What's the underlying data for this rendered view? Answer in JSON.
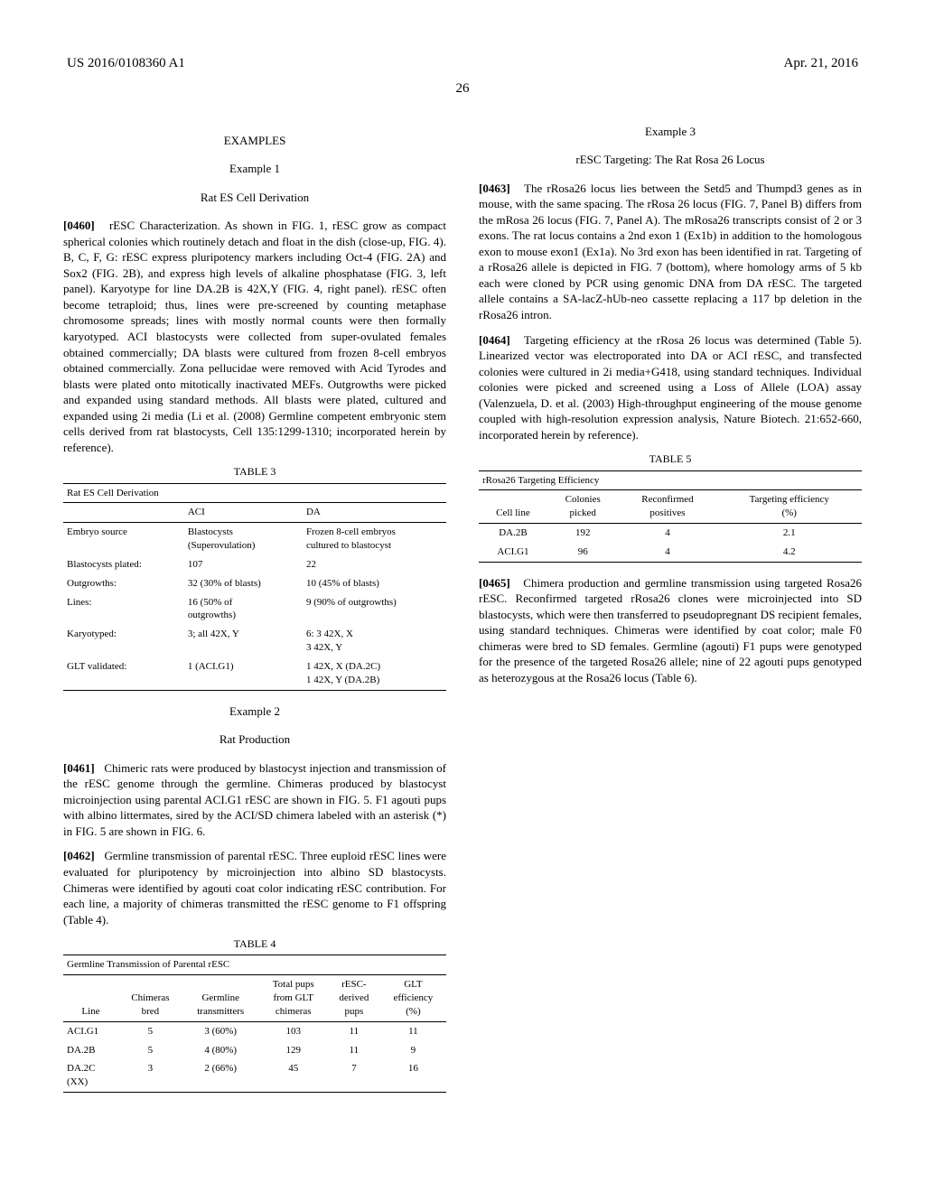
{
  "header": {
    "pub_number": "US 2016/0108360 A1",
    "pub_date": "Apr. 21, 2016",
    "page": "26"
  },
  "left": {
    "examples_heading": "EXAMPLES",
    "example1_heading": "Example 1",
    "example1_subtitle": "Rat ES Cell Derivation",
    "p460_num": "[0460]",
    "p460_text": "rESC Characterization. As shown in FIG. 1, rESC grow as compact spherical colonies which routinely detach and float in the dish (close-up, FIG. 4). B, C, F, G: rESC express pluripotency markers including Oct-4 (FIG. 2A) and Sox2 (FIG. 2B), and express high levels of alkaline phosphatase (FIG. 3, left panel). Karyotype for line DA.2B is 42X,Y (FIG. 4, right panel). rESC often become tetraploid; thus, lines were pre-screened by counting metaphase chromosome spreads; lines with mostly normal counts were then formally karyotyped. ACI blastocysts were collected from super-ovulated females obtained commercially; DA blasts were cultured from frozen 8-cell embryos obtained commercially. Zona pellucidae were removed with Acid Tyrodes and blasts were plated onto mitotically inactivated MEFs. Outgrowths were picked and expanded using standard methods. All blasts were plated, cultured and expanded using 2i media (Li et al. (2008) Germline competent embryonic stem cells derived from rat blastocysts, Cell 135:1299-1310; incorporated herein by reference).",
    "table3_caption": "TABLE 3",
    "table3_title": "Rat ES Cell Derivation",
    "table3_col_aci": "ACI",
    "table3_col_da": "DA",
    "table3": {
      "r1_label": "Embryo source",
      "r1_aci_l1": "Blastocysts",
      "r1_aci_l2": "(Superovulation)",
      "r1_da_l1": "Frozen 8-cell embryos",
      "r1_da_l2": "cultured to blastocyst",
      "r2_label": "Blastocysts plated:",
      "r2_aci": "107",
      "r2_da": "22",
      "r3_label": "Outgrowths:",
      "r3_aci": "32 (30% of blasts)",
      "r3_da": "10 (45% of blasts)",
      "r4_label": "Lines:",
      "r4_aci_l1": "16 (50% of",
      "r4_aci_l2": "outgrowths)",
      "r4_da": "9 (90% of outgrowths)",
      "r5_label": "Karyotyped:",
      "r5_aci": "3; all 42X, Y",
      "r5_da_l1": "6: 3 42X, X",
      "r5_da_l2": "3 42X, Y",
      "r6_label": "GLT validated:",
      "r6_aci": "1 (ACI.G1)",
      "r6_da_l1": "1 42X, X (DA.2C)",
      "r6_da_l2": "1 42X, Y (DA.2B)"
    },
    "example2_heading": "Example 2",
    "example2_subtitle": "Rat Production",
    "p461_num": "[0461]",
    "p461_text": "Chimeric rats were produced by blastocyst injection and transmission of the rESC genome through the germline. Chimeras produced by blastocyst microinjection using parental ACI.G1 rESC are shown in FIG. 5. F1 agouti pups with albino littermates, sired by the ACI/SD chimera labeled with an asterisk (*) in FIG. 5 are shown in FIG. 6.",
    "p462_num": "[0462]",
    "p462_text": "Germline transmission of parental rESC. Three euploid rESC lines were evaluated for pluripotency by microinjection into albino SD blastocysts. Chimeras were identified by agouti coat color indicating rESC contribution. For each line, a majority of chimeras transmitted the rESC genome to F1 offspring (Table 4)."
  },
  "right": {
    "table4_caption": "TABLE 4",
    "table4_title": "Germline Transmission of Parental rESC",
    "table4_headers": {
      "line": "Line",
      "chimeras_l1": "Chimeras",
      "chimeras_l2": "bred",
      "germline_l1": "Germline",
      "germline_l2": "transmitters",
      "total_l1": "Total pups",
      "total_l2": "from GLT",
      "total_l3": "chimeras",
      "resc_l1": "rESC-",
      "resc_l2": "derived",
      "resc_l3": "pups",
      "glt_l1": "GLT",
      "glt_l2": "efficiency",
      "glt_l3": "(%)"
    },
    "table4_rows": {
      "r1_line": "ACI.G1",
      "r1_cb": "5",
      "r1_gt": "3 (60%)",
      "r1_tp": "103",
      "r1_rp": "11",
      "r1_ge": "11",
      "r2_line": "DA.2B",
      "r2_cb": "5",
      "r2_gt": "4 (80%)",
      "r2_tp": "129",
      "r2_rp": "11",
      "r2_ge": "9",
      "r3_line": "DA.2C",
      "r3_cb": "3",
      "r3_gt": "2 (66%)",
      "r3_tp": "45",
      "r3_rp": "7",
      "r3_ge": "16",
      "r3_line_extra": "(XX)"
    },
    "example3_heading": "Example 3",
    "example3_subtitle": "rESC Targeting: The Rat Rosa 26 Locus",
    "p463_num": "[0463]",
    "p463_text": "The rRosa26 locus lies between the Setd5 and Thumpd3 genes as in mouse, with the same spacing. The rRosa 26 locus (FIG. 7, Panel B) differs from the mRosa 26 locus (FIG. 7, Panel A). The mRosa26 transcripts consist of 2 or 3 exons. The rat locus contains a 2nd exon 1 (Ex1b) in addition to the homologous exon to mouse exon1 (Ex1a). No 3rd exon has been identified in rat. Targeting of a rRosa26 allele is depicted in FIG. 7 (bottom), where homology arms of 5 kb each were cloned by PCR using genomic DNA from DA rESC. The targeted allele contains a SA-lacZ-hUb-neo cassette replacing a 117 bp deletion in the rRosa26 intron.",
    "p464_num": "[0464]",
    "p464_text": "Targeting efficiency at the rRosa 26 locus was determined (Table 5). Linearized vector was electroporated into DA or ACI rESC, and transfected colonies were cultured in 2i media+G418, using standard techniques. Individual colonies were picked and screened using a Loss of Allele (LOA) assay (Valenzuela, D. et al. (2003) High-throughput engineering of the mouse genome coupled with high-resolution expression analysis, Nature Biotech. 21:652-660, incorporated herein by reference).",
    "table5_caption": "TABLE 5",
    "table5_title": "rRosa26 Targeting Efficiency",
    "table5_headers": {
      "cell_line": "Cell line",
      "col_l1": "Colonies",
      "col_l2": "picked",
      "rec_l1": "Reconfirmed",
      "rec_l2": "positives",
      "te_l1": "Targeting efficiency",
      "te_l2": "(%)"
    },
    "table5_rows": {
      "r1_cl": "DA.2B",
      "r1_cp": "192",
      "r1_rp": "4",
      "r1_te": "2.1",
      "r2_cl": "ACI.G1",
      "r2_cp": "96",
      "r2_rp": "4",
      "r2_te": "4.2"
    },
    "p465_num": "[0465]",
    "p465_text": "Chimera production and germline transmission using targeted Rosa26 rESC. Reconfirmed targeted rRosa26 clones were microinjected into SD blastocysts, which were then transferred to pseudopregnant DS recipient females, using standard techniques. Chimeras were identified by coat color; male F0 chimeras were bred to SD females. Germline (agouti) F1 pups were genotyped for the presence of the targeted Rosa26 allele; nine of 22 agouti pups genotyped as heterozygous at the Rosa26 locus (Table 6)."
  }
}
